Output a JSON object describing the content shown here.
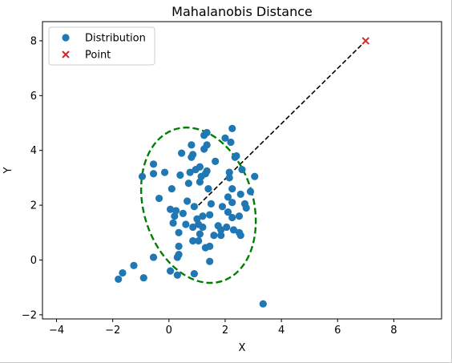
{
  "chart_data": {
    "type": "scatter",
    "title": "Mahalanobis Distance",
    "xlabel": "X",
    "ylabel": "Y",
    "xlim": [
      -4.5,
      9.7
    ],
    "ylim": [
      -2.15,
      8.7
    ],
    "xticks": [
      -4,
      -2,
      0,
      2,
      4,
      6,
      8
    ],
    "yticks": [
      -2,
      0,
      2,
      4,
      6,
      8
    ],
    "grid": false,
    "legend_position": "top-left",
    "colors": {
      "distribution": "#1f77b4",
      "point": "#d62728",
      "ellipse": "#008000",
      "line": "#000000"
    },
    "series": [
      {
        "name": "Distribution",
        "marker": "circle",
        "points": [
          [
            -1.8,
            -0.7
          ],
          [
            -1.65,
            -0.47
          ],
          [
            -1.25,
            -0.2
          ],
          [
            -0.9,
            -0.65
          ],
          [
            -0.55,
            0.1
          ],
          [
            -0.95,
            3.05
          ],
          [
            -0.55,
            3.15
          ],
          [
            -0.55,
            3.5
          ],
          [
            -0.35,
            2.25
          ],
          [
            -0.15,
            3.2
          ],
          [
            0.05,
            1.85
          ],
          [
            0.05,
            -0.4
          ],
          [
            0.1,
            2.6
          ],
          [
            0.15,
            1.35
          ],
          [
            0.2,
            1.6
          ],
          [
            0.25,
            1.8
          ],
          [
            0.3,
            -0.55
          ],
          [
            0.3,
            0.1
          ],
          [
            0.35,
            1.0
          ],
          [
            0.35,
            0.5
          ],
          [
            0.35,
            0.2
          ],
          [
            0.4,
            3.1
          ],
          [
            0.45,
            3.9
          ],
          [
            0.5,
            1.7
          ],
          [
            0.6,
            1.3
          ],
          [
            0.65,
            2.15
          ],
          [
            0.7,
            2.8
          ],
          [
            0.75,
            3.2
          ],
          [
            0.8,
            3.75
          ],
          [
            0.8,
            4.2
          ],
          [
            0.85,
            3.85
          ],
          [
            0.85,
            0.7
          ],
          [
            0.85,
            1.2
          ],
          [
            0.9,
            1.95
          ],
          [
            0.9,
            -0.5
          ],
          [
            0.95,
            3.3
          ],
          [
            1.0,
            1.5
          ],
          [
            1.05,
            1.3
          ],
          [
            1.05,
            0.7
          ],
          [
            1.1,
            3.4
          ],
          [
            1.1,
            2.85
          ],
          [
            1.1,
            0.95
          ],
          [
            1.15,
            3.05
          ],
          [
            1.2,
            1.2
          ],
          [
            1.2,
            1.6
          ],
          [
            1.25,
            4.05
          ],
          [
            1.25,
            4.55
          ],
          [
            1.3,
            3.15
          ],
          [
            1.3,
            0.45
          ],
          [
            1.35,
            4.65
          ],
          [
            1.35,
            4.2
          ],
          [
            1.35,
            3.25
          ],
          [
            1.4,
            2.6
          ],
          [
            1.45,
            1.65
          ],
          [
            1.5,
            2.05
          ],
          [
            1.45,
            0.5
          ],
          [
            1.45,
            -0.05
          ],
          [
            1.6,
            0.9
          ],
          [
            1.65,
            3.6
          ],
          [
            1.75,
            1.25
          ],
          [
            1.85,
            0.9
          ],
          [
            1.85,
            1.1
          ],
          [
            1.9,
            1.95
          ],
          [
            2.0,
            4.45
          ],
          [
            2.05,
            1.2
          ],
          [
            2.1,
            1.75
          ],
          [
            2.1,
            2.3
          ],
          [
            2.15,
            3.2
          ],
          [
            2.15,
            3.0
          ],
          [
            2.2,
            4.3
          ],
          [
            2.25,
            4.8
          ],
          [
            2.25,
            2.6
          ],
          [
            2.25,
            2.1
          ],
          [
            2.25,
            1.55
          ],
          [
            2.3,
            1.1
          ],
          [
            2.35,
            3.75
          ],
          [
            2.4,
            3.8
          ],
          [
            2.5,
            1.6
          ],
          [
            2.5,
            1.0
          ],
          [
            2.55,
            0.9
          ],
          [
            2.55,
            2.4
          ],
          [
            2.6,
            3.3
          ],
          [
            2.7,
            2.05
          ],
          [
            2.75,
            1.9
          ],
          [
            2.9,
            2.5
          ],
          [
            3.05,
            3.05
          ],
          [
            3.35,
            -1.6
          ]
        ]
      },
      {
        "name": "Point",
        "marker": "x",
        "points": [
          [
            7.0,
            8.0
          ]
        ]
      }
    ],
    "ellipse": {
      "center": [
        1.05,
        2.0
      ],
      "rx": 1.95,
      "ry": 2.9,
      "angle_deg": -17
    },
    "distance_line": {
      "from": [
        1.05,
        2.0
      ],
      "to": [
        7.0,
        8.0
      ]
    }
  }
}
